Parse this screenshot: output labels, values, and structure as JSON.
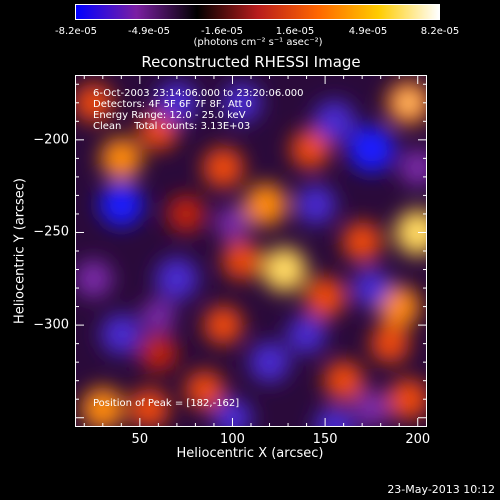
{
  "chart_data": {
    "type": "heatmap",
    "title": "Reconstructed RHESSI Image",
    "xlabel": "Heliocentric X (arcsec)",
    "ylabel": "Heliocentric Y (arcsec)",
    "xlim": [
      15,
      205
    ],
    "ylim": [
      -355,
      -165
    ],
    "x_ticks": [
      50,
      100,
      150,
      200
    ],
    "y_ticks": [
      -200,
      -250,
      -300
    ],
    "colorbar": {
      "tick_labels": [
        "-8.2e-05",
        "-4.9e-05",
        "-1.6e-05",
        "1.6e-05",
        "4.9e-05",
        "8.2e-05"
      ],
      "units": "(photons cm⁻² s⁻¹ asec⁻²)",
      "range": [
        -8.2e-05,
        8.2e-05
      ],
      "colors": [
        "#0000ff",
        "#7b1fa2",
        "#000000",
        "#b71c1c",
        "#ff6600",
        "#ffcc00",
        "#ffffff"
      ]
    },
    "annotations": {
      "line1": "6-Oct-2003 23:14:06.000 to 23:20:06.000",
      "line2": "Detectors: 4F 5F 6F 7F 8F, Att 0",
      "line3": "Energy Range: 12.0 - 25.0 keV",
      "line4": "Clean    Total counts: 3.13E+03",
      "peak": "Position of Peak = [182,-162]"
    },
    "peak_position": [
      182,
      -162
    ],
    "blobs": [
      {
        "x": 40,
        "y": -210,
        "v": 0.7
      },
      {
        "x": 60,
        "y": -195,
        "v": 0.55
      },
      {
        "x": 95,
        "y": -215,
        "v": 0.65
      },
      {
        "x": 118,
        "y": -235,
        "v": 0.75
      },
      {
        "x": 142,
        "y": -205,
        "v": 0.6
      },
      {
        "x": 195,
        "y": -180,
        "v": 0.8
      },
      {
        "x": 170,
        "y": -255,
        "v": 0.6
      },
      {
        "x": 75,
        "y": -240,
        "v": 0.5
      },
      {
        "x": 128,
        "y": -270,
        "v": 0.85
      },
      {
        "x": 150,
        "y": -285,
        "v": 0.65
      },
      {
        "x": 200,
        "y": -250,
        "v": 0.9
      },
      {
        "x": 190,
        "y": -290,
        "v": 0.7
      },
      {
        "x": 95,
        "y": -300,
        "v": 0.55
      },
      {
        "x": 60,
        "y": -315,
        "v": 0.5
      },
      {
        "x": 30,
        "y": -345,
        "v": 0.75
      },
      {
        "x": 55,
        "y": -345,
        "v": 0.6
      },
      {
        "x": 85,
        "y": -335,
        "v": 0.55
      },
      {
        "x": 160,
        "y": -330,
        "v": 0.6
      },
      {
        "x": 195,
        "y": -340,
        "v": 0.65
      },
      {
        "x": 105,
        "y": -265,
        "v": 0.55
      },
      {
        "x": 25,
        "y": -180,
        "v": 0.55
      },
      {
        "x": 185,
        "y": -310,
        "v": 0.55
      },
      {
        "x": 40,
        "y": -235,
        "v": -0.8
      },
      {
        "x": 175,
        "y": -205,
        "v": -0.95
      },
      {
        "x": 155,
        "y": -190,
        "v": -0.7
      },
      {
        "x": 70,
        "y": -180,
        "v": -0.7
      },
      {
        "x": 105,
        "y": -180,
        "v": -0.55
      },
      {
        "x": 145,
        "y": -235,
        "v": -0.6
      },
      {
        "x": 70,
        "y": -275,
        "v": -0.75
      },
      {
        "x": 100,
        "y": -245,
        "v": -0.35
      },
      {
        "x": 175,
        "y": -280,
        "v": -0.55
      },
      {
        "x": 120,
        "y": -320,
        "v": -0.65
      },
      {
        "x": 155,
        "y": -355,
        "v": -0.6
      },
      {
        "x": 40,
        "y": -305,
        "v": -0.65
      },
      {
        "x": 140,
        "y": -305,
        "v": -0.55
      },
      {
        "x": 100,
        "y": -350,
        "v": -0.55
      },
      {
        "x": 200,
        "y": -215,
        "v": -0.45
      },
      {
        "x": 175,
        "y": -345,
        "v": -0.45
      },
      {
        "x": 60,
        "y": -295,
        "v": -0.3
      },
      {
        "x": 25,
        "y": -275,
        "v": -0.5
      }
    ]
  },
  "footer": {
    "date": "23-May-2013 10:12"
  }
}
